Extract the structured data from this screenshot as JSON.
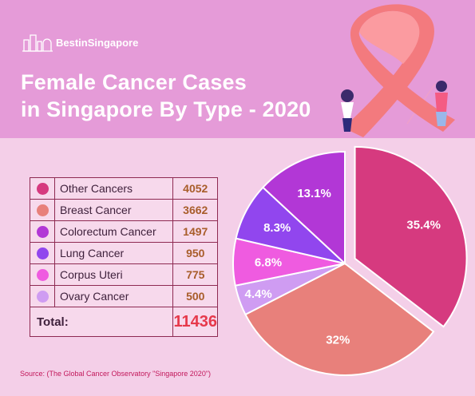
{
  "brand": {
    "name": "BestinSingapore",
    "logo_icon": "city-skyline-icon"
  },
  "title": {
    "line1": "Female Cancer Cases",
    "line2": "in Singapore By Type - 2020"
  },
  "legend": {
    "rows": [
      {
        "label": "Other Cancers",
        "value": "4052",
        "color": "#d63a7f"
      },
      {
        "label": "Breast Cancer",
        "value": "3662",
        "color": "#e8807b"
      },
      {
        "label": "Colorectum Cancer",
        "value": "1497",
        "color": "#b237d6"
      },
      {
        "label": "Lung Cancer",
        "value": "950",
        "color": "#9146ee"
      },
      {
        "label": "Corpus Uteri",
        "value": "775",
        "color": "#ef5be0"
      },
      {
        "label": "Ovary Cancer",
        "value": "500",
        "color": "#cf9cf2"
      }
    ],
    "total_label": "Total:",
    "total_value": "11436"
  },
  "source": "Source: (The Global Cancer Observatory \"Singapore 2020\")",
  "chart_data": {
    "type": "pie",
    "title": "Female Cancer Cases in Singapore By Type - 2020",
    "slices": [
      {
        "label": "Other Cancers",
        "value": 4052,
        "percent_label": "35.4%",
        "color": "#d63a7f"
      },
      {
        "label": "Breast Cancer",
        "value": 3662,
        "percent_label": "32%",
        "color": "#e8807b"
      },
      {
        "label": "Ovary Cancer",
        "value": 500,
        "percent_label": "4.4%",
        "color": "#cf9cf2"
      },
      {
        "label": "Corpus Uteri",
        "value": 775,
        "percent_label": "6.8%",
        "color": "#ef5be0"
      },
      {
        "label": "Lung Cancer",
        "value": 950,
        "percent_label": "8.3%",
        "color": "#9146ee"
      },
      {
        "label": "Colorectum Cancer",
        "value": 1497,
        "percent_label": "13.1%",
        "color": "#b237d6"
      }
    ],
    "total": 11436,
    "start_direction": "12 o'clock",
    "direction": "clockwise"
  }
}
